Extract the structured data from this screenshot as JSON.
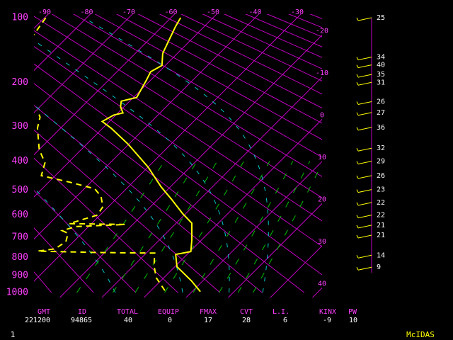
{
  "chart_data": {
    "type": "skew-t",
    "ylim": [
      1000,
      100
    ],
    "yticks": [
      100,
      200,
      300,
      400,
      500,
      600,
      700,
      800,
      900,
      1000
    ],
    "xlim": [
      -90,
      -30
    ],
    "xticks": [
      -90,
      -80,
      -70,
      -60,
      -50,
      -40,
      -30
    ],
    "right_ticks": [
      -20,
      -10,
      0,
      10,
      20,
      30,
      40
    ],
    "grid_color": "#c000c0",
    "label_color": "#ff40ff",
    "dry_adiabats": [
      250,
      260,
      270,
      280,
      290,
      300,
      310,
      320,
      330,
      340,
      350,
      360,
      370,
      380,
      390,
      400,
      410,
      420,
      430,
      440,
      450,
      460,
      470,
      480
    ],
    "moist_adiabats": [
      -8,
      8,
      19,
      27
    ],
    "moist_color": "#00c8c8",
    "mixing_ratio_lines": [
      1,
      2,
      3,
      5,
      8,
      12,
      16,
      20
    ],
    "mixing_color": "#00c000",
    "series": [
      {
        "color": "#ffff00",
        "line_style": "solid",
        "pressure": [
          995,
          930,
          850,
          785,
          770,
          715,
          635,
          594,
          535,
          488,
          419,
          348,
          304,
          287,
          271,
          266,
          252,
          239,
          231,
          196,
          180,
          169,
          149,
          111,
          100
        ],
        "values": [
          12,
          7.3,
          0.5,
          -2.7,
          0.2,
          -2.2,
          -6.3,
          -10.7,
          -16.8,
          -22.2,
          -30,
          -40.2,
          -48,
          -51.7,
          -50.5,
          -48.8,
          -50.8,
          -52,
          -49.2,
          -51,
          -52,
          -50.8,
          -53.5,
          -56.8,
          -57.7
        ]
      },
      {
        "color": "#ffff00",
        "line_style": "dashed",
        "pressure": [
          988,
          912,
          844,
          778,
          775,
          768,
          757,
          721,
          681,
          669,
          650,
          641,
          637,
          600,
          565,
          524,
          495,
          471,
          448,
          405,
          364,
          304,
          276,
          260,
          null,
          127,
          100
        ],
        "values": [
          3.3,
          -1.8,
          -5.2,
          -8,
          -21.8,
          -36.3,
          -32.7,
          -31.8,
          -33.3,
          -35.3,
          -33,
          -21.8,
          -35.3,
          -30.7,
          -31.3,
          -34.2,
          -37.5,
          -45,
          -53.3,
          -55.5,
          -60,
          -65.5,
          -67.5,
          -69.7,
          null,
          -88.3,
          -89.7
        ]
      }
    ],
    "wind": {
      "color": "#ffff00",
      "pressure": [
        100,
        155,
        168,
        185,
        200,
        240,
        265,
        302,
        360,
        400,
        448,
        498,
        548,
        600,
        644,
        690,
        789,
        853
      ],
      "speed": [
        25,
        34,
        40,
        35,
        31,
        26,
        27,
        36,
        32,
        29,
        26,
        23,
        22,
        22,
        21,
        21,
        14,
        9
      ]
    }
  },
  "table": {
    "headers": [
      "GMT",
      "ID",
      "TOTAL",
      "EQUIP",
      "FMAX",
      "CVT",
      "L.I.",
      "KINX",
      "PW"
    ],
    "values": [
      221200,
      94865,
      40,
      0,
      17,
      28,
      6,
      -9,
      10
    ]
  },
  "footer": {
    "page": 1,
    "brand": "McIDAS"
  }
}
